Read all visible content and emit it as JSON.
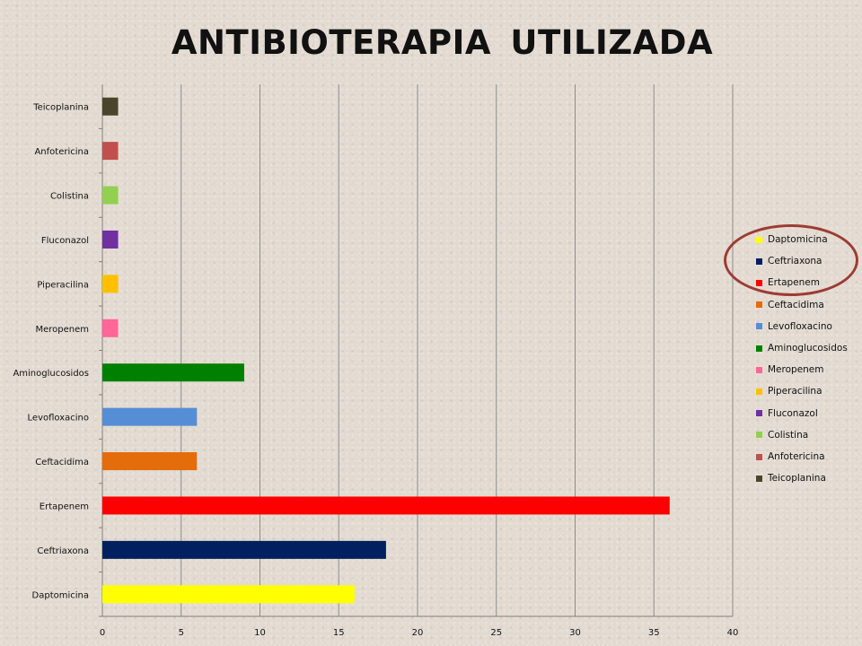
{
  "chart_data": {
    "type": "bar",
    "orientation": "horizontal",
    "title": "ANTIBIOTERAPIA  UTILIZADA",
    "categories": [
      "Daptomicina",
      "Ceftriaxona",
      "Ertapenem",
      "Ceftacidima",
      "Levofloxacino",
      "Aminoglucosidos",
      "Meropenem",
      "Piperacilina",
      "Fluconazol",
      "Colistina",
      "Anfotericina",
      "Teicoplanina"
    ],
    "values": [
      16,
      18,
      36,
      6,
      6,
      9,
      1,
      1,
      1,
      1,
      1,
      1
    ],
    "colors": [
      "#ffff00",
      "#002060",
      "#ff0000",
      "#e46c0a",
      "#558ed5",
      "#008000",
      "#ff6699",
      "#ffc000",
      "#7030a0",
      "#92d050",
      "#c0504d",
      "#4a452a"
    ],
    "xlim": [
      0,
      40
    ],
    "xticks": [
      "0",
      "5",
      "10",
      "15",
      "20",
      "25",
      "30",
      "35",
      "40"
    ],
    "grid": "vertical",
    "legend_position": "right",
    "highlight": "ellipse circling Daptomicina, Ceftriaxona and Ertapenem legend entries"
  }
}
